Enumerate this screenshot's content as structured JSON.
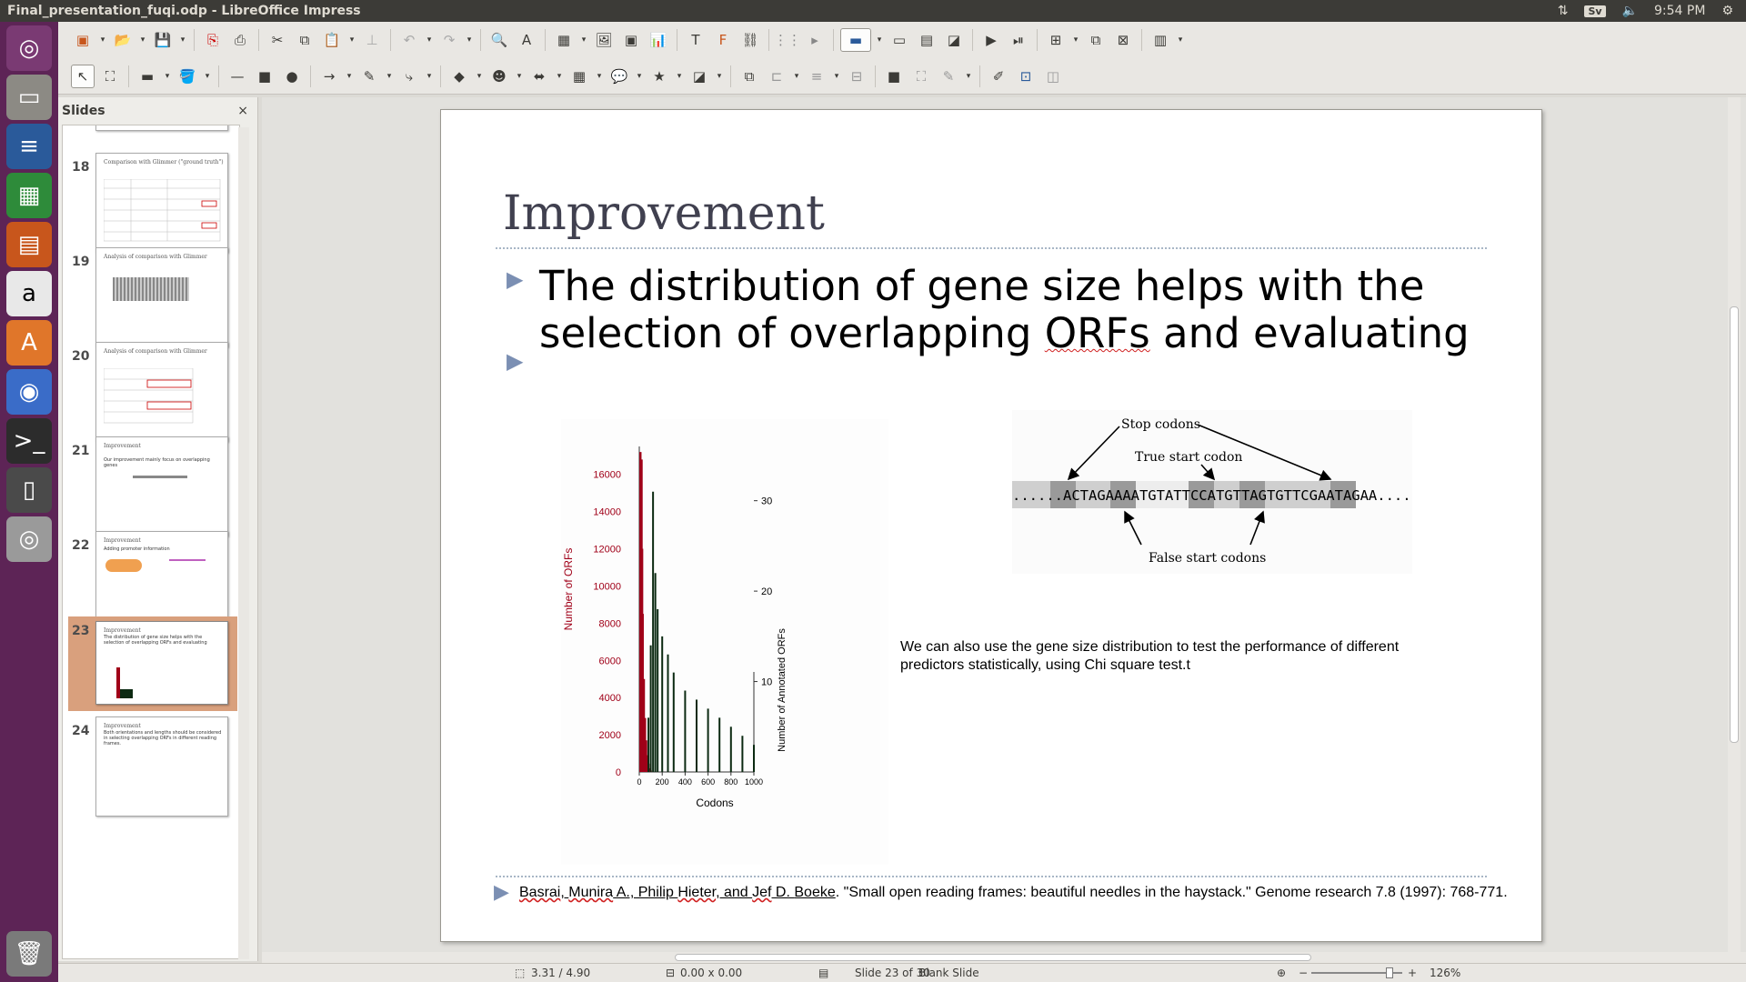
{
  "window": {
    "title": "Final_presentation_fuqi.odp - LibreOffice Impress"
  },
  "indicators": {
    "keyboard": "Sv",
    "time": "9:54 PM"
  },
  "panel": {
    "title": "Slides",
    "close": "×"
  },
  "thumbnails": [
    {
      "num": "18",
      "title": "Comparison with Glimmer (\"ground truth\")",
      "body": ""
    },
    {
      "num": "19",
      "title": "Analysis of comparison with Glimmer",
      "body": ""
    },
    {
      "num": "20",
      "title": "Analysis of comparison with Glimmer",
      "body": ""
    },
    {
      "num": "21",
      "title": "Improvement",
      "body": "Our improvement mainly focus on overlapping genes"
    },
    {
      "num": "22",
      "title": "Improvement",
      "body": "Adding promoter information"
    },
    {
      "num": "23",
      "title": "Improvement",
      "body": "The distribution of gene size helps with the selection of overlapping ORFs and evaluating"
    },
    {
      "num": "24",
      "title": "Improvement",
      "body": "Both orientations and lengths should be considered in selecting overlapping ORFs in different reading frames."
    }
  ],
  "slide": {
    "title": "Improvement",
    "bullet1_a": "The distribution of gene size helps with the",
    "bullet1_b": "selection of overlapping ",
    "bullet1_c": "ORFs",
    "bullet1_d": " and evaluating",
    "note": "We can also use the gene size distribution to test the performance of different predictors statistically, using Chi square test.t",
    "ref_a": "Basrai",
    "ref_b": ", ",
    "ref_c": "Munira",
    "ref_d": " A., Philip ",
    "ref_e": "Hieter",
    "ref_f": ", and ",
    "ref_g": "Jef",
    "ref_h": " D. ",
    "ref_i": "Boeke",
    "ref_j": ". \"Small open reading frames: beautiful needles in the haystack.\" Genome research 7.8 (1997): 768-771."
  },
  "codon_figure": {
    "stop_label": "Stop codons",
    "true_label": "True start codon",
    "false_label": "False start codons",
    "sequence": "......ACTAGAAAATGTATTCCATGTTAGTGTTCGAATAGAA......"
  },
  "chart_data": {
    "type": "bar",
    "title": "",
    "xlabel": "Codons",
    "ylabel": "Number of ORFs",
    "y2label": "Number of Annotated ORFs",
    "xticks": [
      "0",
      "200",
      "400",
      "600",
      "800",
      "1000"
    ],
    "yticks": [
      "0",
      "2000",
      "4000",
      "6000",
      "8000",
      "10000",
      "12000",
      "14000",
      "16000"
    ],
    "y2ticks": [
      "10",
      "20",
      "30"
    ],
    "xlim": [
      0,
      1000
    ],
    "ylim": [
      0,
      17500
    ],
    "y2lim": [
      0,
      36
    ],
    "series": [
      {
        "name": "Number of ORFs",
        "color": "#a00018",
        "x": [
          10,
          20,
          25,
          30,
          40,
          50,
          60,
          70,
          80,
          90,
          100
        ],
        "values": [
          17200,
          16800,
          12000,
          8500,
          5000,
          2900,
          1700,
          900,
          450,
          200,
          80
        ]
      },
      {
        "name": "Number of Annotated ORFs",
        "color": "#0c2a12",
        "x": [
          80,
          100,
          120,
          140,
          160,
          200,
          250,
          300,
          400,
          500,
          600,
          700,
          800,
          900,
          1000
        ],
        "values": [
          6,
          14,
          31,
          22,
          18,
          15,
          13,
          11,
          9,
          8,
          7,
          6,
          5,
          4,
          3
        ]
      }
    ]
  },
  "status": {
    "position": "3.31 / 4.90",
    "size": "0.00 x 0.00",
    "slide": "Slide 23 of 30",
    "layout": "Blank Slide",
    "zoom": "126%"
  }
}
